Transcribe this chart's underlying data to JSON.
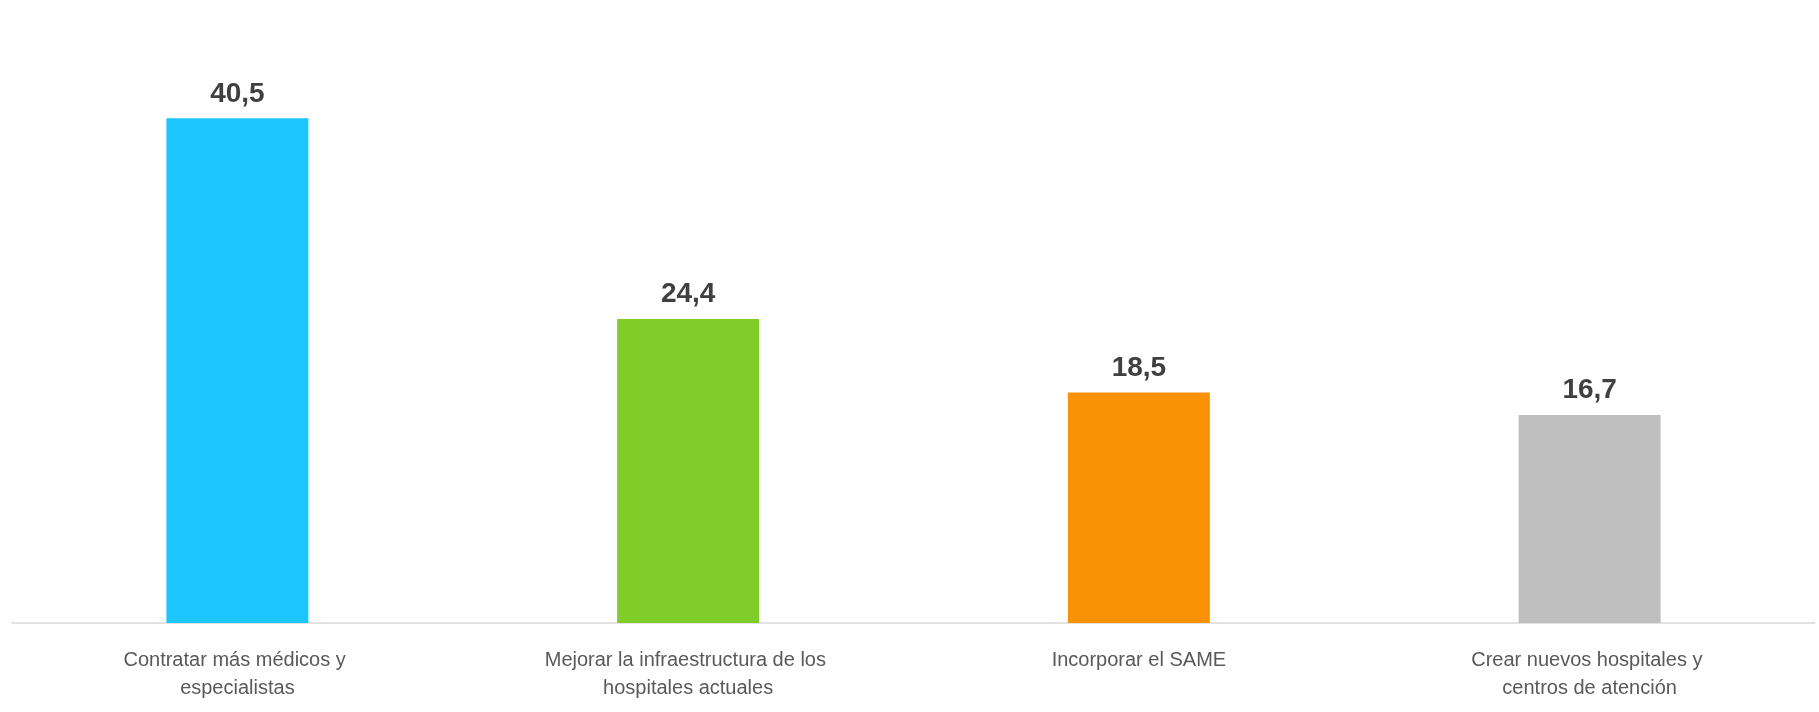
{
  "chart_data": {
    "type": "bar",
    "categories": [
      "Contratar más médicos y especialistas",
      "Mejorar la infraestructura de los hospitales actuales",
      "Incorporar el SAME",
      "Crear nuevos hospitales y centros de atención"
    ],
    "values": [
      40.5,
      24.4,
      18.5,
      16.7
    ],
    "colors": [
      "#1ec6ff",
      "#80cc28",
      "#fb9106",
      "#bfbfbf"
    ],
    "value_labels": [
      "40,5",
      "24,4",
      "18,5",
      "16,7"
    ],
    "grid": false
  }
}
